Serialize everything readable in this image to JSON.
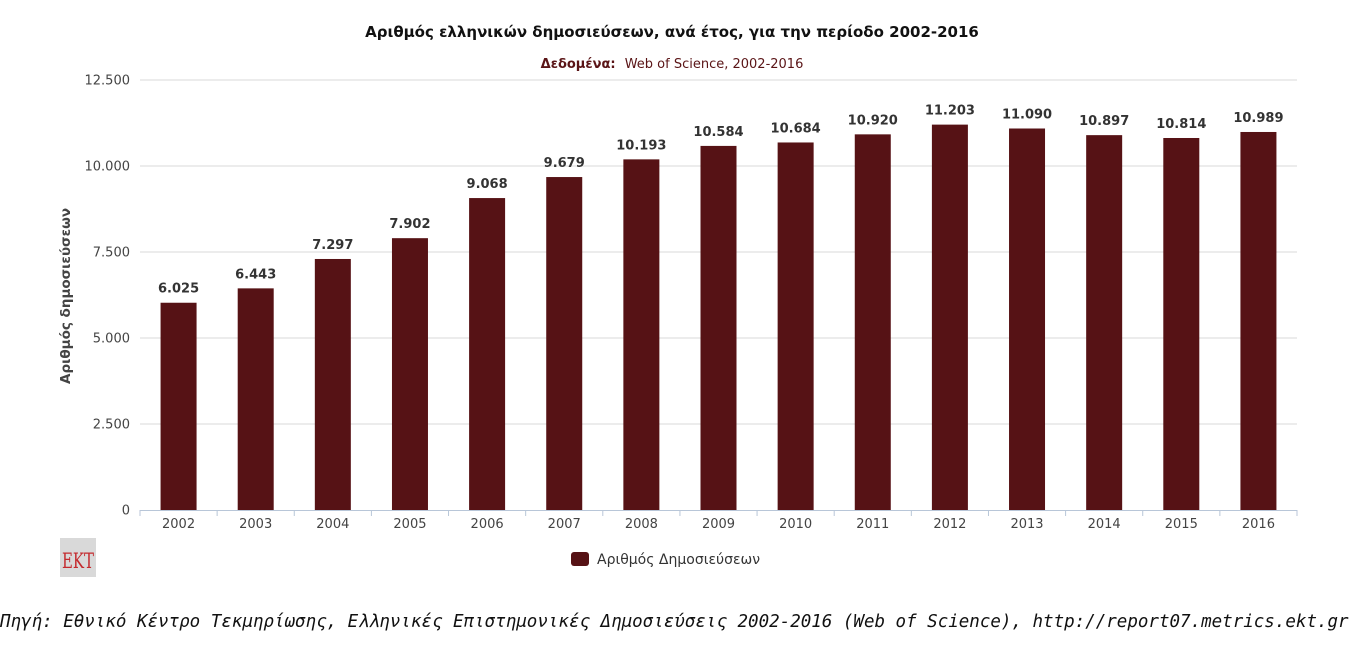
{
  "colors": {
    "bar": "#561215",
    "gridline": "#d8d8d8",
    "axis_line": "#b8c6d8",
    "subtitle": "#5a1416",
    "logo_bg": "#d9d9d9",
    "logo_text": "#c42a2e"
  },
  "logo": {
    "text": "EKT"
  },
  "source": {
    "text": "Πηγή: Εθνικό Κέντρο Τεκμηρίωσης, Ελληνικές Επιστημονικές Δημοσιεύσεις 2002-2016 (Web of Science), http://report07.metrics.ekt.gr"
  },
  "chart_data": {
    "type": "bar",
    "title": "Αριθμός ελληνικών δημοσιεύσεων, ανά έτος, για την περίοδο 2002-2016",
    "subtitle_label": "Δεδομένα:",
    "subtitle": "Web of Science, 2002-2016",
    "xlabel": "",
    "ylabel": "Αριθμός δημοσιεύσεων",
    "ylim": [
      0,
      12500
    ],
    "yticks": [
      0,
      2500,
      5000,
      7500,
      10000,
      12500
    ],
    "ytick_labels": [
      "0",
      "2.500",
      "5.000",
      "7.500",
      "10.000",
      "12.500"
    ],
    "grid": true,
    "legend_position": "bottom-center",
    "categories": [
      "2002",
      "2003",
      "2004",
      "2005",
      "2006",
      "2007",
      "2008",
      "2009",
      "2010",
      "2011",
      "2012",
      "2013",
      "2014",
      "2015",
      "2016"
    ],
    "series": [
      {
        "name": "Αριθμός Δημοσιεύσεων",
        "values": [
          6025,
          6443,
          7297,
          7902,
          9068,
          9679,
          10193,
          10584,
          10684,
          10920,
          11203,
          11090,
          10897,
          10814,
          10989
        ],
        "value_labels": [
          "6.025",
          "6.443",
          "7.297",
          "7.902",
          "9.068",
          "9.679",
          "10.193",
          "10.584",
          "10.684",
          "10.920",
          "11.203",
          "11.090",
          "10.897",
          "10.814",
          "10.989"
        ]
      }
    ]
  }
}
